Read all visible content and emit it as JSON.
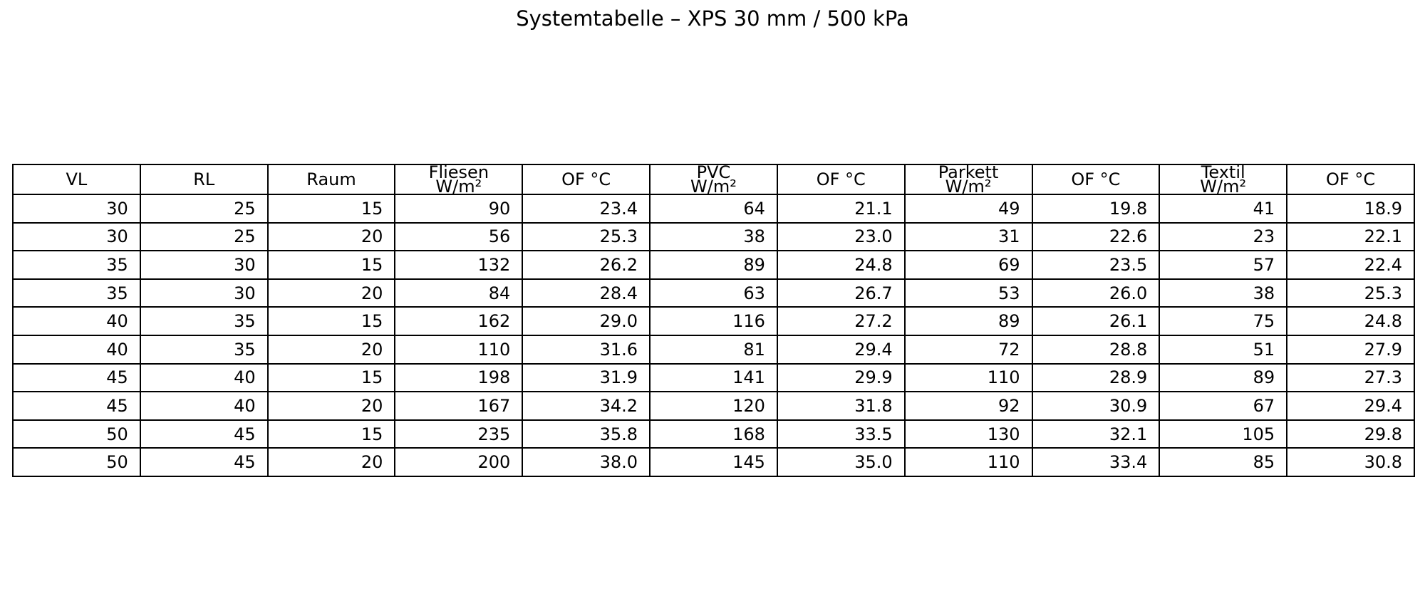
{
  "title": "Systemtabelle – XPS 30 mm / 500 kPa",
  "styles": {
    "background": "#ffffff",
    "text_color": "#000000",
    "border_color": "#000000"
  },
  "chart_data": {
    "type": "table",
    "title": "Systemtabelle – XPS 30 mm / 500 kPa",
    "columns": [
      "VL",
      "RL",
      "Raum",
      "Fliesen\nW/m²",
      "OF °C",
      "PVC\nW/m²",
      "OF °C",
      "Parkett\nW/m²",
      "OF °C",
      "Textil\nW/m²",
      "OF °C"
    ],
    "rows": [
      [
        "30",
        "25",
        "15",
        "90",
        "23.4",
        "64",
        "21.1",
        "49",
        "19.8",
        "41",
        "18.9"
      ],
      [
        "30",
        "25",
        "20",
        "56",
        "25.3",
        "38",
        "23.0",
        "31",
        "22.6",
        "23",
        "22.1"
      ],
      [
        "35",
        "30",
        "15",
        "132",
        "26.2",
        "89",
        "24.8",
        "69",
        "23.5",
        "57",
        "22.4"
      ],
      [
        "35",
        "30",
        "20",
        "84",
        "28.4",
        "63",
        "26.7",
        "53",
        "26.0",
        "38",
        "25.3"
      ],
      [
        "40",
        "35",
        "15",
        "162",
        "29.0",
        "116",
        "27.2",
        "89",
        "26.1",
        "75",
        "24.8"
      ],
      [
        "40",
        "35",
        "20",
        "110",
        "31.6",
        "81",
        "29.4",
        "72",
        "28.8",
        "51",
        "27.9"
      ],
      [
        "45",
        "40",
        "15",
        "198",
        "31.9",
        "141",
        "29.9",
        "110",
        "28.9",
        "89",
        "27.3"
      ],
      [
        "45",
        "40",
        "20",
        "167",
        "34.2",
        "120",
        "31.8",
        "92",
        "30.9",
        "67",
        "29.4"
      ],
      [
        "50",
        "45",
        "15",
        "235",
        "35.8",
        "168",
        "33.5",
        "130",
        "32.1",
        "105",
        "29.8"
      ],
      [
        "50",
        "45",
        "20",
        "200",
        "38.0",
        "145",
        "35.0",
        "110",
        "33.4",
        "85",
        "30.8"
      ]
    ]
  }
}
